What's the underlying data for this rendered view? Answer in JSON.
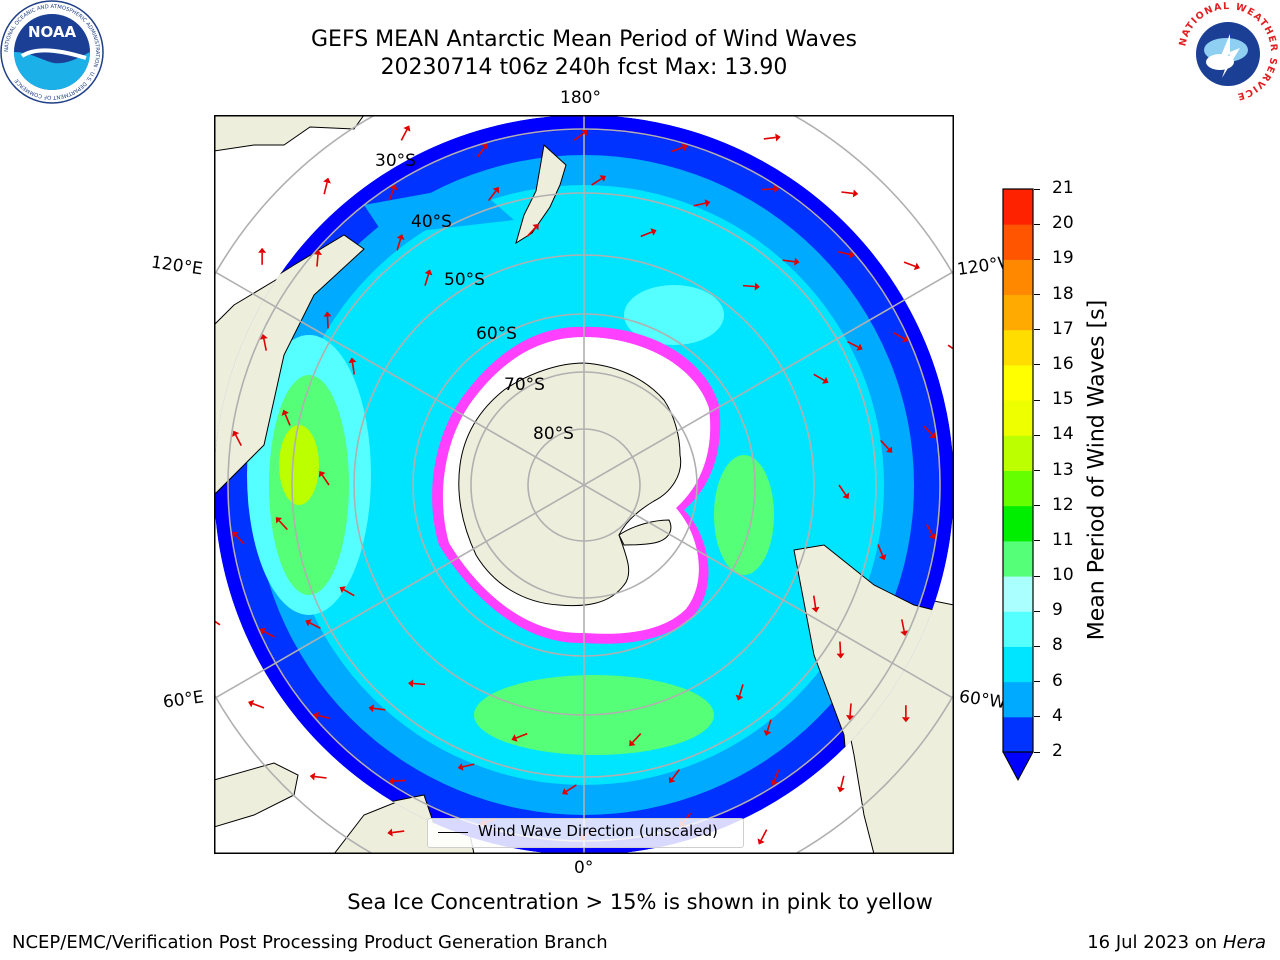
{
  "header": {
    "title_line1": "GEFS MEAN Antarctic Mean Period of Wind Waves",
    "title_line2": "20230714 t06z 240h fcst   Max: 13.90"
  },
  "logos": {
    "noaa_text": "NOAA",
    "noaa_ring_text": "NATIONAL OCEANIC AND ATMOSPHERIC ADMINISTRATION · U.S. DEPARTMENT OF COMMERCE",
    "nws_ring_text": "NATIONAL WEATHER SERVICE"
  },
  "map": {
    "projection": "south-polar-stereographic",
    "longitude_labels": {
      "top": "180°",
      "left_upper": "120°E",
      "right_upper": "120°W",
      "left_lower": "60°E",
      "right_lower": "60°W",
      "bottom": "0°"
    },
    "latitude_labels": [
      "30°S",
      "40°S",
      "50°S",
      "60°S",
      "70°S",
      "80°S"
    ],
    "colors": {
      "land": "#eeeedc",
      "sea_ice": "#ffffff",
      "ice_edge": "#ff40ff",
      "arrow": "#e00000",
      "grid": "#b0b0b0"
    },
    "legend_label": "Wind Wave Direction (unscaled)"
  },
  "colorbar": {
    "label": "Mean Period of Wind Waves [s]",
    "ticks": [
      "2",
      "4",
      "6",
      "8",
      "9",
      "10",
      "11",
      "12",
      "13",
      "14",
      "15",
      "16",
      "17",
      "18",
      "19",
      "20",
      "21"
    ],
    "colors": [
      "#0033ff",
      "#00aaff",
      "#00e5ff",
      "#55ffff",
      "#aaffff",
      "#55ff77",
      "#00ee00",
      "#66ff00",
      "#bbff00",
      "#eeff00",
      "#ffff00",
      "#ffdd00",
      "#ffaa00",
      "#ff8800",
      "#ff5500",
      "#ff2200"
    ],
    "under_color": "#0000ff"
  },
  "footer": {
    "note": "Sea Ice Concentration > 15% is shown in pink to yellow",
    "left": "NCEP/EMC/Verification Post Processing Product Generation Branch",
    "date": "16 Jul 2023 on ",
    "machine": "Hera"
  }
}
